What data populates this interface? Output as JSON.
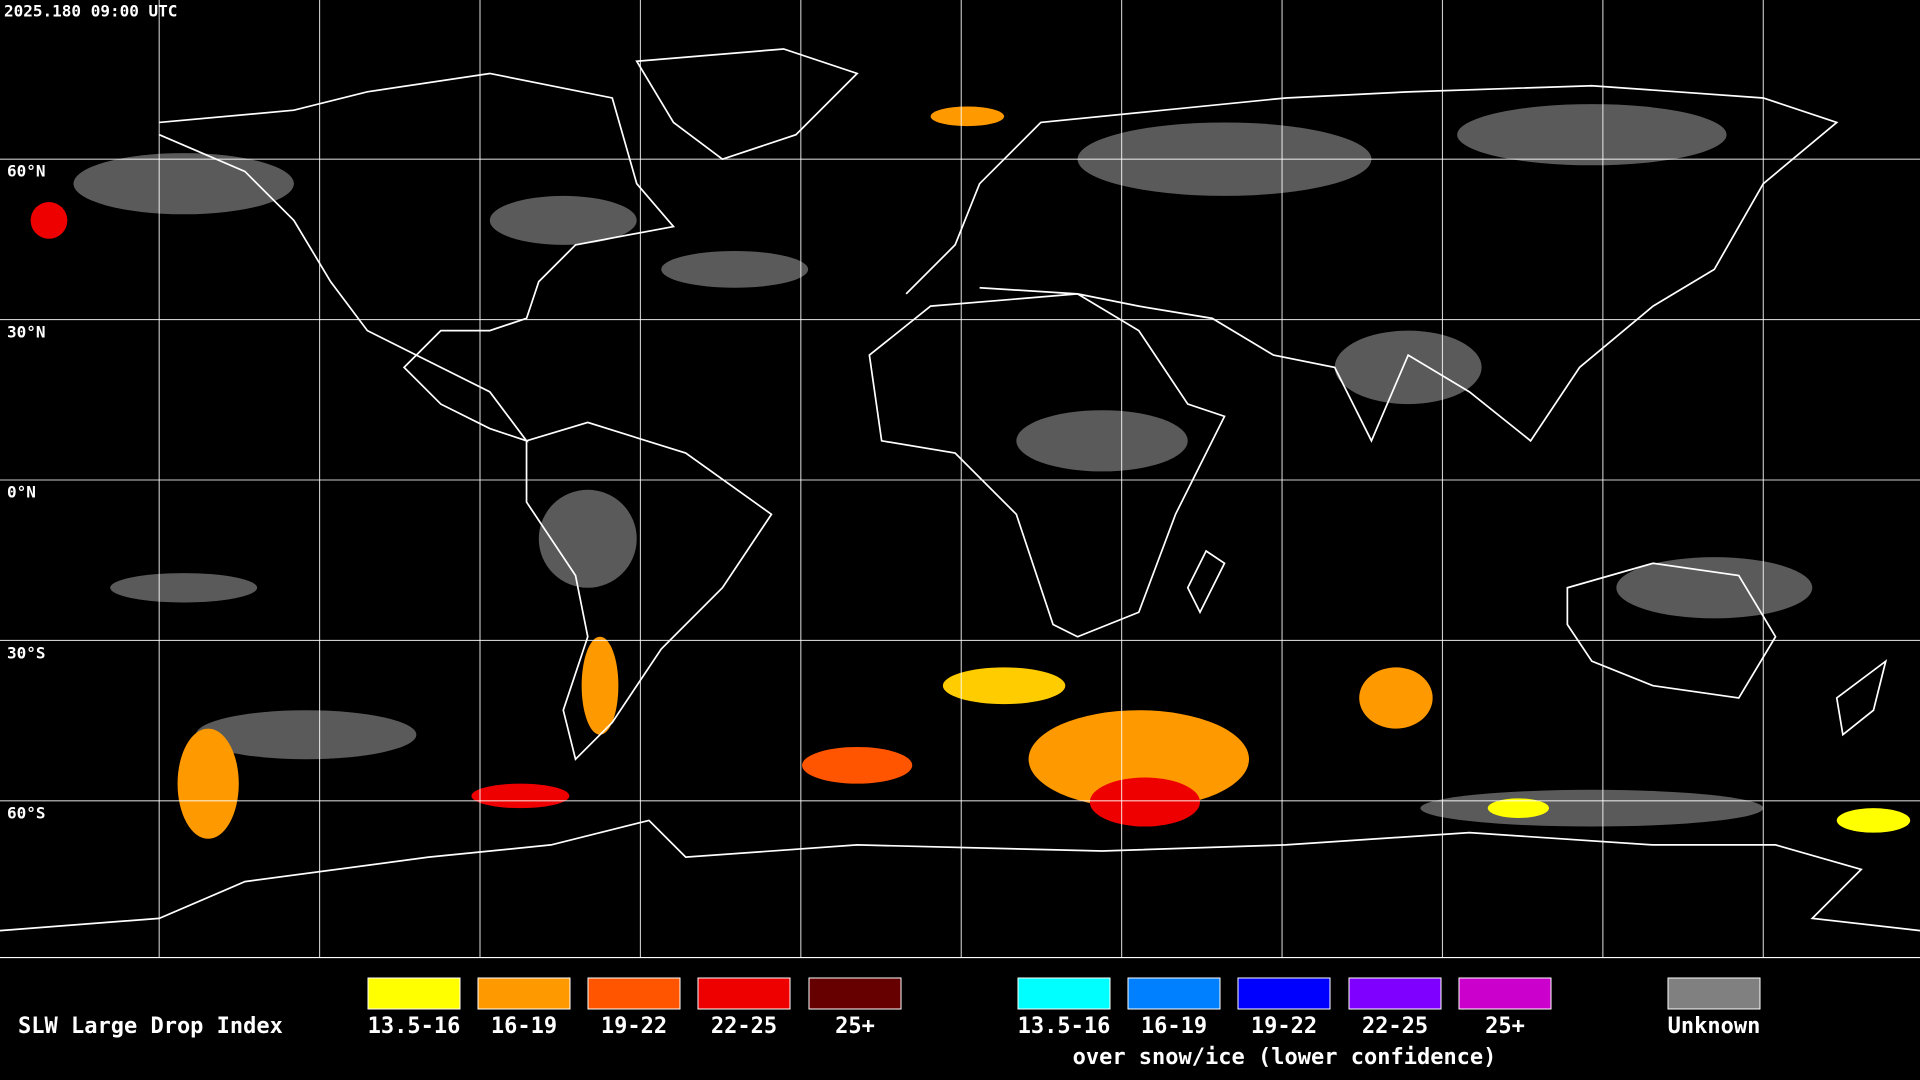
{
  "header": {
    "timestamp": "2025.180 09:00 UTC"
  },
  "map": {
    "latitude_labels": [
      "60°N",
      "30°N",
      "0°N",
      "30°S",
      "60°S"
    ]
  },
  "legend": {
    "title": "SLW Large Drop Index",
    "groups": [
      {
        "items": [
          {
            "label": "13.5-16",
            "color": "#ffff00"
          },
          {
            "label": "16-19",
            "color": "#ff9900"
          },
          {
            "label": "19-22",
            "color": "#ff5500"
          },
          {
            "label": "22-25",
            "color": "#ee0000"
          },
          {
            "label": "25+",
            "color": "#660000"
          }
        ]
      },
      {
        "items": [
          {
            "label": "13.5-16",
            "color": "#00ffff"
          },
          {
            "label": "16-19",
            "color": "#0080ff"
          },
          {
            "label": "19-22",
            "color": "#0000ff"
          },
          {
            "label": "22-25",
            "color": "#8000ff"
          },
          {
            "label": "25+",
            "color": "#cc00cc"
          }
        ],
        "caption": "over snow/ice (lower confidence)"
      },
      {
        "items": [
          {
            "label": "Unknown",
            "color": "#808080"
          }
        ]
      }
    ]
  }
}
